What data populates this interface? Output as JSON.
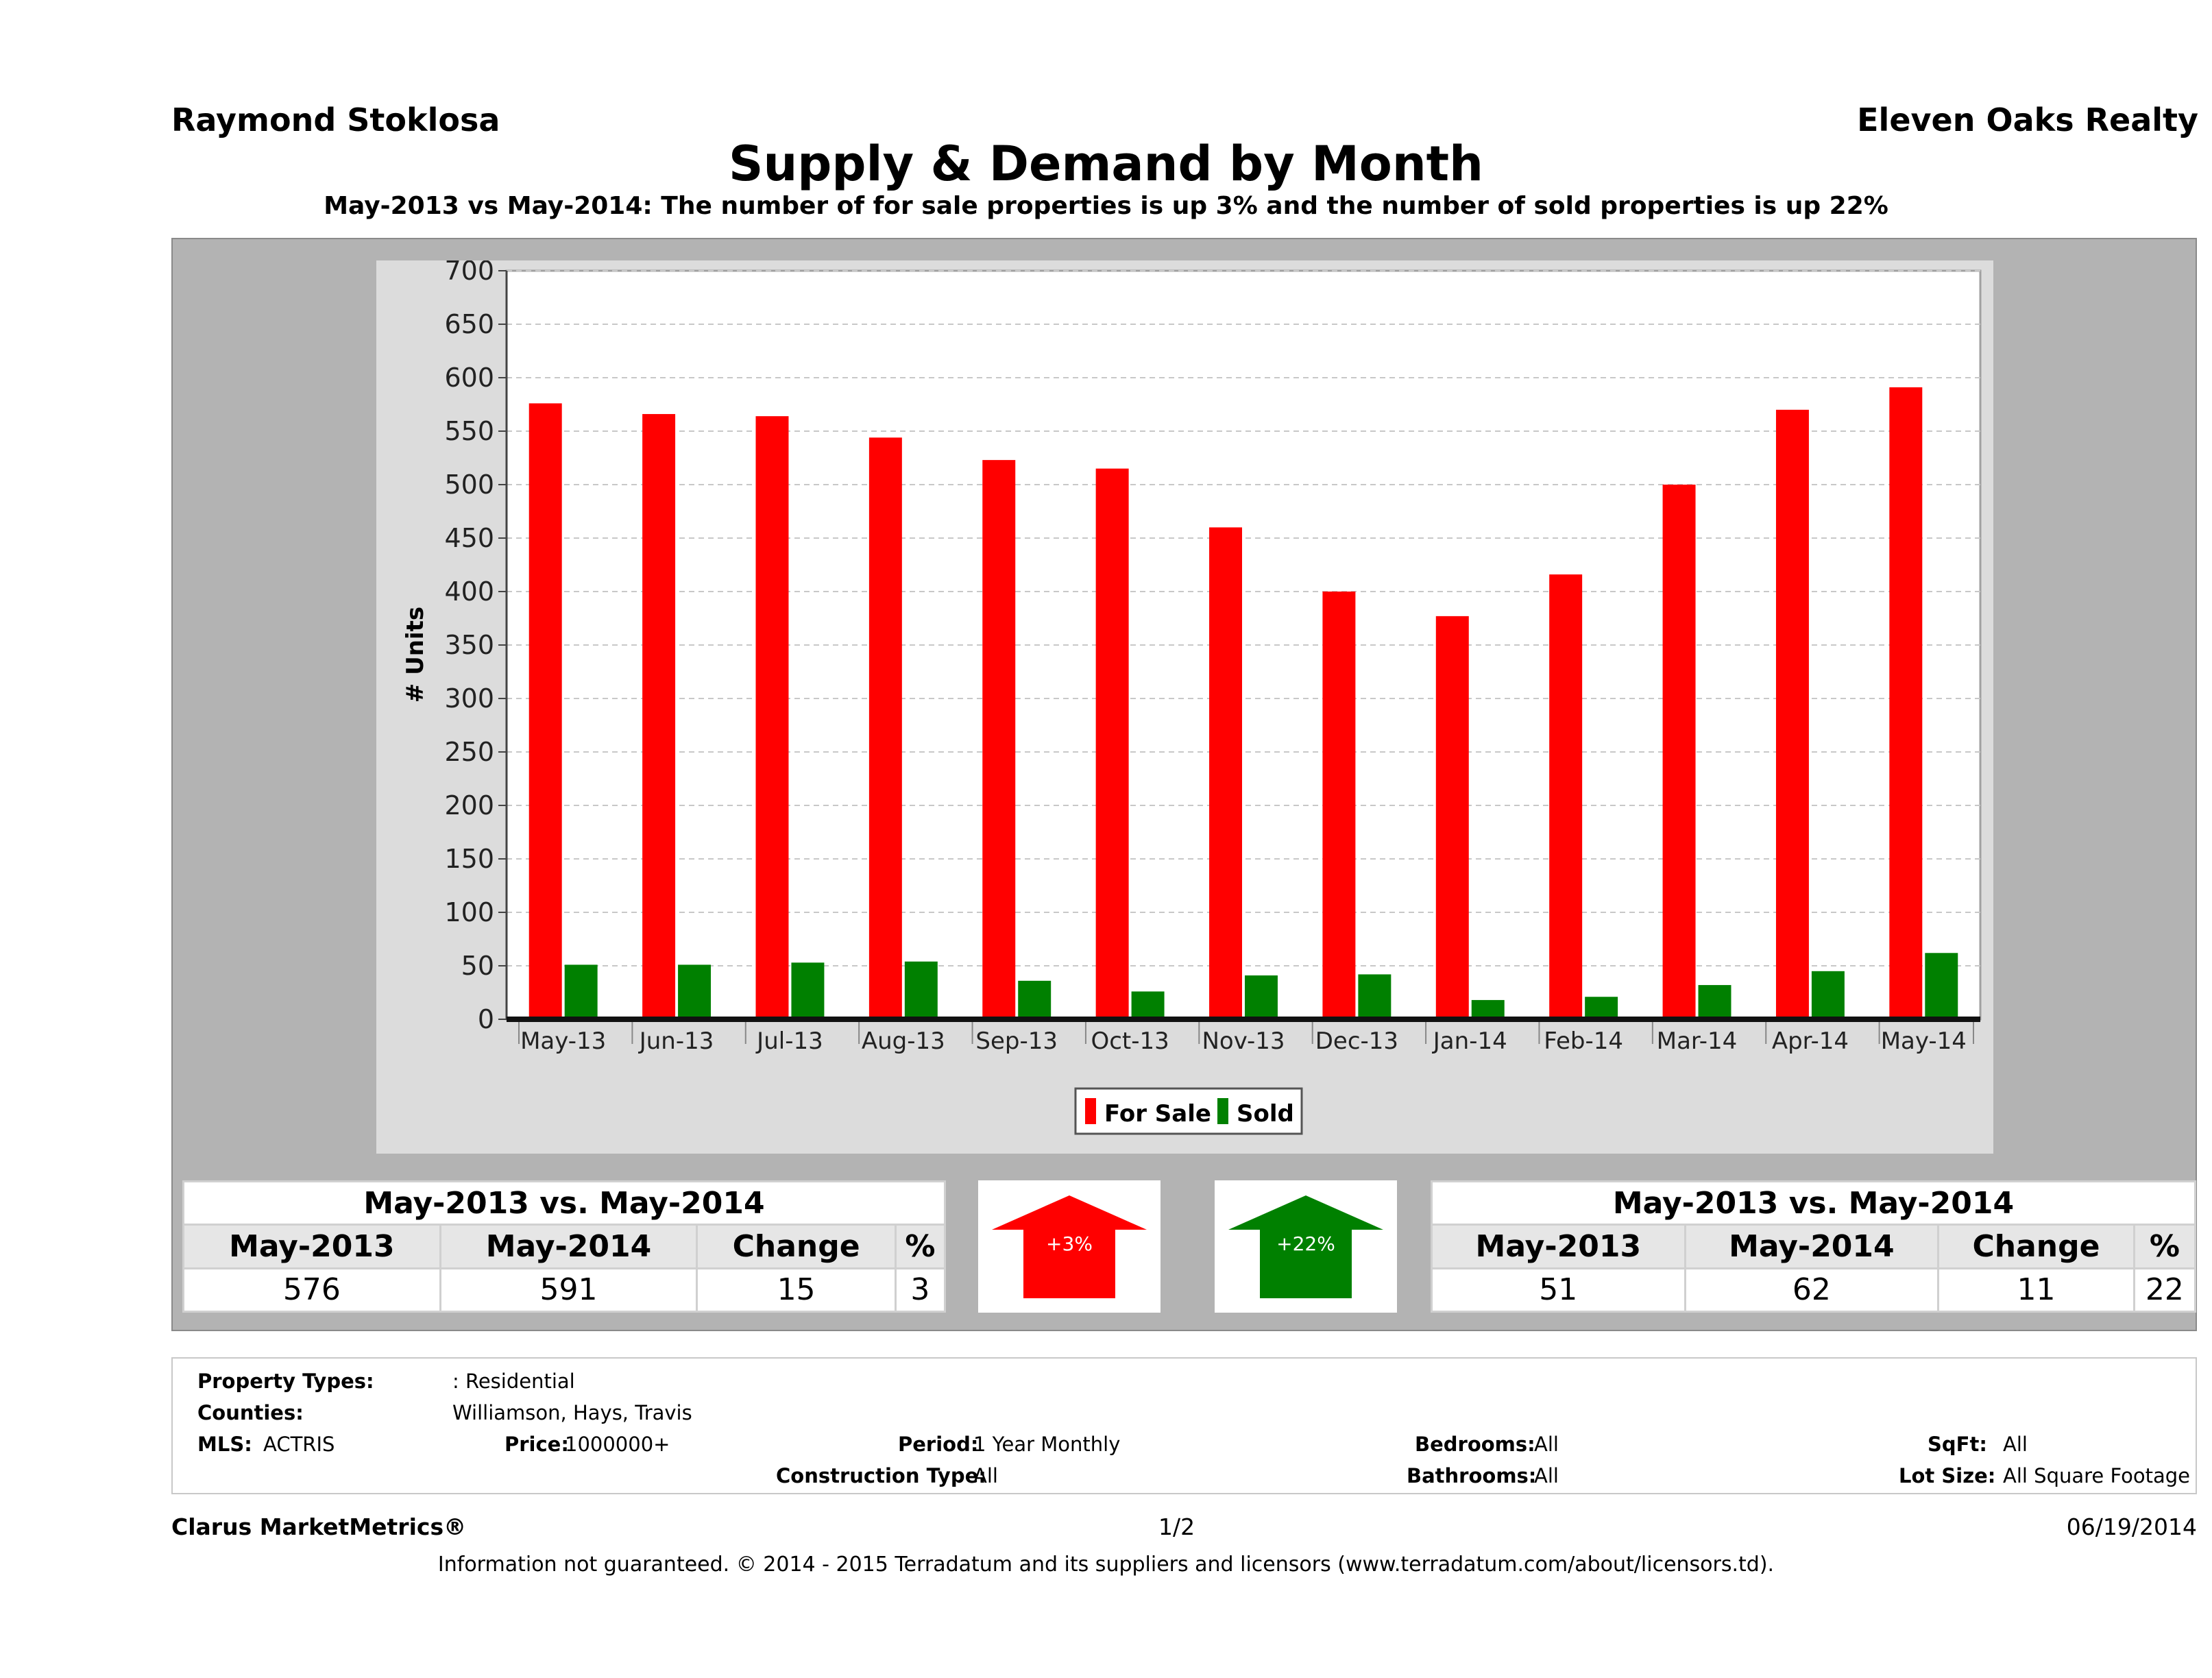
{
  "header": {
    "agent": "Raymond Stoklosa",
    "broker": "Eleven Oaks Realty"
  },
  "chart_data": {
    "type": "bar",
    "title": "Supply & Demand by Month",
    "subtitle": "May-2013 vs May-2014: The number of for sale properties is up 3% and the number of sold properties is up 22%",
    "xlabel": "",
    "ylabel": "# Units",
    "ylim": [
      0,
      700
    ],
    "yticks": [
      0,
      50,
      100,
      150,
      200,
      250,
      300,
      350,
      400,
      450,
      500,
      550,
      600,
      650,
      700
    ],
    "grid": true,
    "legend_placement": "bottom-center",
    "categories": [
      "May-13",
      "Jun-13",
      "Jul-13",
      "Aug-13",
      "Sep-13",
      "Oct-13",
      "Nov-13",
      "Dec-13",
      "Jan-14",
      "Feb-14",
      "Mar-14",
      "Apr-14",
      "May-14"
    ],
    "series": [
      {
        "name": "For Sale",
        "color": "#ff0000",
        "values": [
          576,
          566,
          564,
          544,
          523,
          515,
          460,
          400,
          377,
          416,
          500,
          570,
          591
        ]
      },
      {
        "name": "Sold",
        "color": "#008000",
        "values": [
          51,
          51,
          53,
          54,
          36,
          26,
          41,
          42,
          18,
          21,
          32,
          45,
          62
        ]
      }
    ]
  },
  "summary_left": {
    "title": "May-2013 vs. May-2014",
    "headers": [
      "May-2013",
      "May-2014",
      "Change",
      "%"
    ],
    "values": [
      "576",
      "591",
      "15",
      "3"
    ]
  },
  "arrow_left": {
    "label": "+3%",
    "color": "#ff0000"
  },
  "arrow_right": {
    "label": "+22%",
    "color": "#008000"
  },
  "summary_right": {
    "title": "May-2013 vs. May-2014",
    "headers": [
      "May-2013",
      "May-2014",
      "Change",
      "%"
    ],
    "values": [
      "51",
      "62",
      "11",
      "22"
    ]
  },
  "criteria": {
    "property_types_label": "Property Types:",
    "property_types_value": ": Residential",
    "counties_label": "Counties:",
    "counties_value": "Williamson, Hays, Travis",
    "mls_label": "MLS:",
    "mls_value": "ACTRIS",
    "price_label": "Price:",
    "price_value": "1000000+",
    "period_label": "Period:",
    "period_value": "1 Year Monthly",
    "construction_label": "Construction Type:",
    "construction_value": "All",
    "bedrooms_label": "Bedrooms:",
    "bedrooms_value": "All",
    "bathrooms_label": "Bathrooms:",
    "bathrooms_value": "All",
    "sqft_label": "SqFt:",
    "sqft_value": "All",
    "lot_label": "Lot Size:",
    "lot_value": "All Square Footage"
  },
  "footer": {
    "brand": "Clarus MarketMetrics®",
    "page": "1/2",
    "date": "06/19/2014",
    "disclaimer": "Information not guaranteed. © 2014 - 2015 Terradatum and its suppliers and licensors (www.terradatum.com/about/licensors.td)."
  }
}
